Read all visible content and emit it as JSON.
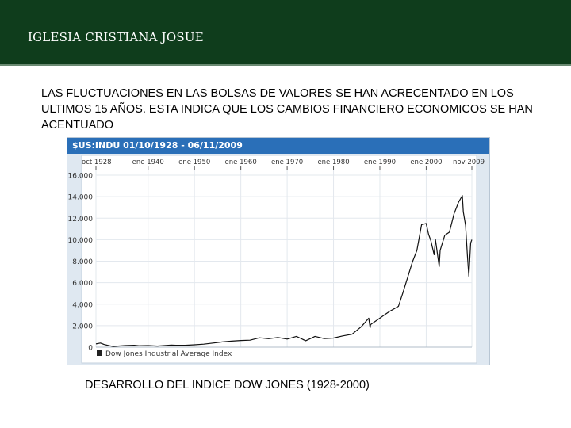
{
  "header": {
    "title": "IGLESIA CRISTIANA JOSUE"
  },
  "body": {
    "text": "LAS FLUCTUACIONES EN LAS BOLSAS DE VALORES SE HAN ACRECENTADO EN LOS ULTIMOS 15 AÑOS. ESTA INDICA QUE LOS CAMBIOS FINANCIERO ECONOMICOS SE HAN ACENTUADO"
  },
  "caption": "DESARROLLO DEL INDICE DOW JONES (1928-2000)",
  "chart_data": {
    "type": "line",
    "title": "$US:INDU 01/10/1928 - 06/11/2009",
    "x_tick_labels": [
      "oct 1928",
      "ene 1940",
      "ene 1950",
      "ene 1960",
      "ene 1970",
      "ene 1980",
      "ene 1990",
      "ene 2000",
      "nov 2009"
    ],
    "x_tick_years": [
      1928.75,
      1940,
      1950,
      1960,
      1970,
      1980,
      1990,
      2000,
      2009.85
    ],
    "y_tick_labels": [
      "0",
      "2.000",
      "4.000",
      "6.000",
      "8.000",
      "10.000",
      "12.000",
      "14.000",
      "16.000"
    ],
    "y_tick_values": [
      0,
      2000,
      4000,
      6000,
      8000,
      10000,
      12000,
      14000,
      16000
    ],
    "ylim": [
      0,
      16000
    ],
    "xlim": [
      1928.75,
      2009.85
    ],
    "grid": true,
    "line_color": "#111111",
    "legend": {
      "position": "bottom-left",
      "label": "Dow Jones Industrial Average Index"
    },
    "series": [
      {
        "x": [
          1928.75,
          1929.7,
          1930.5,
          1931.5,
          1932.5,
          1933.5,
          1935,
          1937,
          1938,
          1940,
          1942,
          1945,
          1946,
          1948,
          1950,
          1952,
          1954,
          1956,
          1958,
          1960,
          1962,
          1964,
          1966,
          1968,
          1970,
          1972,
          1974,
          1976,
          1978,
          1980,
          1982,
          1984,
          1986,
          1987.6,
          1987.9,
          1988,
          1990,
          1991,
          1992,
          1994,
          1995,
          1996,
          1997,
          1998,
          1999,
          2000,
          2000.5,
          2001,
          2001.7,
          2002,
          2002.8,
          2003,
          2004,
          2005,
          2006,
          2007,
          2007.8,
          2008,
          2008.5,
          2008.9,
          2009.2,
          2009.6,
          2009.85
        ],
        "y": [
          300,
          380,
          250,
          150,
          60,
          100,
          150,
          180,
          130,
          150,
          100,
          190,
          180,
          180,
          220,
          280,
          380,
          490,
          560,
          620,
          650,
          870,
          790,
          900,
          750,
          1000,
          600,
          1000,
          800,
          850,
          1050,
          1200,
          1900,
          2700,
          1800,
          2100,
          2700,
          3000,
          3300,
          3800,
          5100,
          6500,
          7900,
          9000,
          11400,
          11500,
          10500,
          9900,
          8600,
          10000,
          7500,
          9000,
          10400,
          10700,
          12400,
          13500,
          14100,
          12600,
          11300,
          8500,
          6600,
          9700,
          10000
        ]
      }
    ]
  }
}
